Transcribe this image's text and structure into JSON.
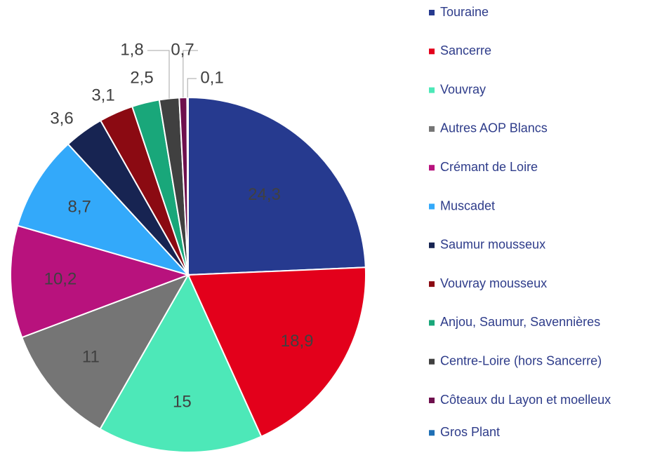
{
  "chart_data": {
    "type": "pie",
    "categories": [
      "Touraine",
      "Sancerre",
      "Vouvray",
      "Autres AOP Blancs",
      "Crémant de Loire",
      "Muscadet",
      "Saumur mousseux",
      "Vouvray mousseux",
      "Anjou, Saumur, Savennières",
      "Centre-Loire (hors Sancerre)",
      "Côteaux du Layon et moelleux",
      "Gros Plant"
    ],
    "values": [
      24.3,
      18.9,
      15,
      11,
      10.2,
      8.7,
      3.6,
      3.1,
      2.5,
      1.8,
      0.7,
      0.1
    ],
    "value_labels": [
      "24,3",
      "18,9",
      "15",
      "11",
      "10,2",
      "8,7",
      "3,6",
      "3,1",
      "2,5",
      "1,8",
      "0,7",
      "0,1"
    ],
    "colors": [
      "#263a8f",
      "#e3001b",
      "#4de8b8",
      "#757575",
      "#b8127d",
      "#33a9fa",
      "#172452",
      "#8b0a12",
      "#19a77a",
      "#404040",
      "#6e0f4d",
      "#1f6fb5"
    ],
    "legend": "right"
  }
}
